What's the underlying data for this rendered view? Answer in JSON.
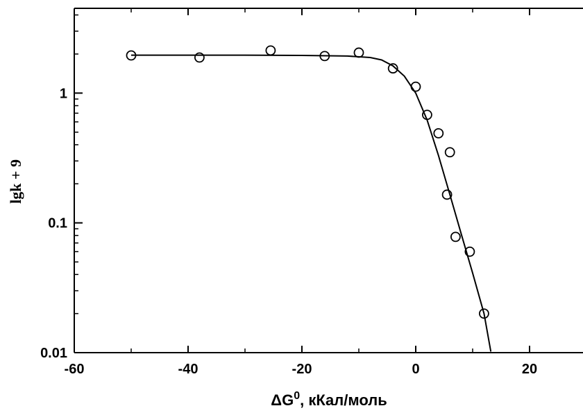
{
  "chart_data": {
    "type": "scatter",
    "title": "",
    "xlabel": "ΔG⁰, кКал/моль",
    "ylabel": "lgk + 9",
    "xlim": [
      -60,
      30
    ],
    "ylim": [
      0.01,
      4.5
    ],
    "yscale": "log",
    "grid": false,
    "x_ticks": [
      -60,
      -40,
      -20,
      0,
      20
    ],
    "x_tick_labels": [
      "-60",
      "-40",
      "-20",
      "0",
      "20"
    ],
    "y_ticks": [
      0.01,
      0.1,
      1
    ],
    "y_tick_labels": [
      "0.01",
      "0.1",
      "1"
    ],
    "series": [
      {
        "type": "scatter",
        "marker": "open-circle",
        "color": "#000000",
        "x": [
          -50,
          -38,
          -25.5,
          -16,
          -10,
          -4,
          0,
          2,
          4,
          5.5,
          6,
          7,
          9.5,
          12
        ],
        "y": [
          1.95,
          1.88,
          2.13,
          1.93,
          2.05,
          1.55,
          1.12,
          0.68,
          0.49,
          0.165,
          0.35,
          0.078,
          0.06,
          0.02
        ]
      },
      {
        "type": "line",
        "color": "#000000",
        "x": [
          -50,
          -40,
          -30,
          -20,
          -12,
          -8,
          -6,
          -4,
          -2,
          0,
          2,
          4,
          6,
          8,
          10,
          12,
          13.2
        ],
        "y": [
          1.96,
          1.96,
          1.96,
          1.95,
          1.93,
          1.88,
          1.8,
          1.62,
          1.35,
          1.0,
          0.62,
          0.33,
          0.165,
          0.082,
          0.041,
          0.02,
          0.0102
        ]
      }
    ]
  }
}
